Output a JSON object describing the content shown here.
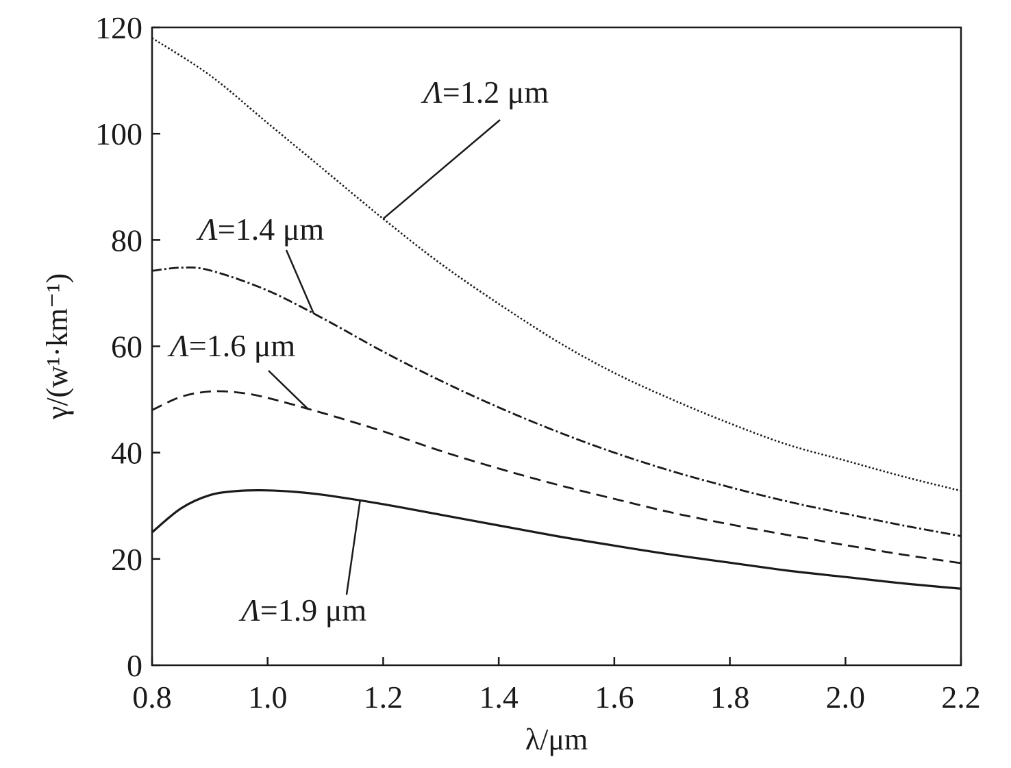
{
  "chart_data": {
    "type": "line",
    "xlabel": "λ/μm",
    "ylabel": "γ/(w¹·km⁻¹)",
    "xlim": [
      0.8,
      2.2
    ],
    "ylim": [
      0,
      120
    ],
    "xticks": [
      "0.8",
      "1.0",
      "1.2",
      "1.4",
      "1.6",
      "1.8",
      "2.0",
      "2.2"
    ],
    "yticks": [
      "0",
      "20",
      "40",
      "60",
      "80",
      "100",
      "120"
    ],
    "grid": false,
    "legend": "none",
    "series": [
      {
        "name": "Λ=1.2 μm",
        "style": "dotted",
        "x": [
          0.8,
          0.9,
          1.0,
          1.1,
          1.2,
          1.3,
          1.4,
          1.5,
          1.6,
          1.7,
          1.8,
          1.9,
          2.0,
          2.1,
          2.2
        ],
        "y": [
          118,
          111,
          102,
          93,
          84,
          75.5,
          68,
          61,
          55,
          50,
          45.5,
          41.5,
          38.5,
          35.5,
          32.8
        ]
      },
      {
        "name": "Λ=1.4 μm",
        "style": "dashdot",
        "x": [
          0.8,
          0.85,
          0.9,
          1.0,
          1.1,
          1.2,
          1.3,
          1.4,
          1.5,
          1.6,
          1.7,
          1.8,
          1.9,
          2.0,
          2.1,
          2.2
        ],
        "y": [
          74.2,
          74.8,
          74.3,
          70.5,
          65,
          59,
          53.5,
          48.5,
          44,
          40,
          36.5,
          33.5,
          30.8,
          28.5,
          26.3,
          24.3
        ]
      },
      {
        "name": "Λ=1.6 μm",
        "style": "dashed",
        "x": [
          0.8,
          0.85,
          0.9,
          0.95,
          1.0,
          1.1,
          1.2,
          1.3,
          1.4,
          1.5,
          1.6,
          1.7,
          1.8,
          1.9,
          2.0,
          2.1,
          2.2
        ],
        "y": [
          48,
          50.5,
          51.5,
          51.3,
          50.3,
          47.3,
          44,
          40.3,
          37,
          34,
          31.3,
          28.7,
          26.5,
          24.5,
          22.6,
          20.8,
          19.2
        ]
      },
      {
        "name": "Λ=1.9 μm",
        "style": "solid",
        "x": [
          0.8,
          0.85,
          0.9,
          0.95,
          1.0,
          1.05,
          1.1,
          1.2,
          1.3,
          1.4,
          1.5,
          1.6,
          1.7,
          1.8,
          1.9,
          2.0,
          2.1,
          2.2
        ],
        "y": [
          25,
          29.5,
          32,
          32.8,
          32.9,
          32.6,
          32,
          30.3,
          28.3,
          26.3,
          24.3,
          22.5,
          20.8,
          19.3,
          17.8,
          16.6,
          15.4,
          14.4
        ]
      }
    ],
    "annotations": [
      {
        "text": "Λ=1.2 μm",
        "series": 0,
        "point_x": 1.2
      },
      {
        "text": "Λ=1.4 μm",
        "series": 1,
        "point_x": 1.08
      },
      {
        "text": "Λ=1.6 μm",
        "series": 2,
        "point_x": 1.07
      },
      {
        "text": "Λ=1.9 μm",
        "series": 3,
        "point_x": 1.16
      }
    ]
  }
}
